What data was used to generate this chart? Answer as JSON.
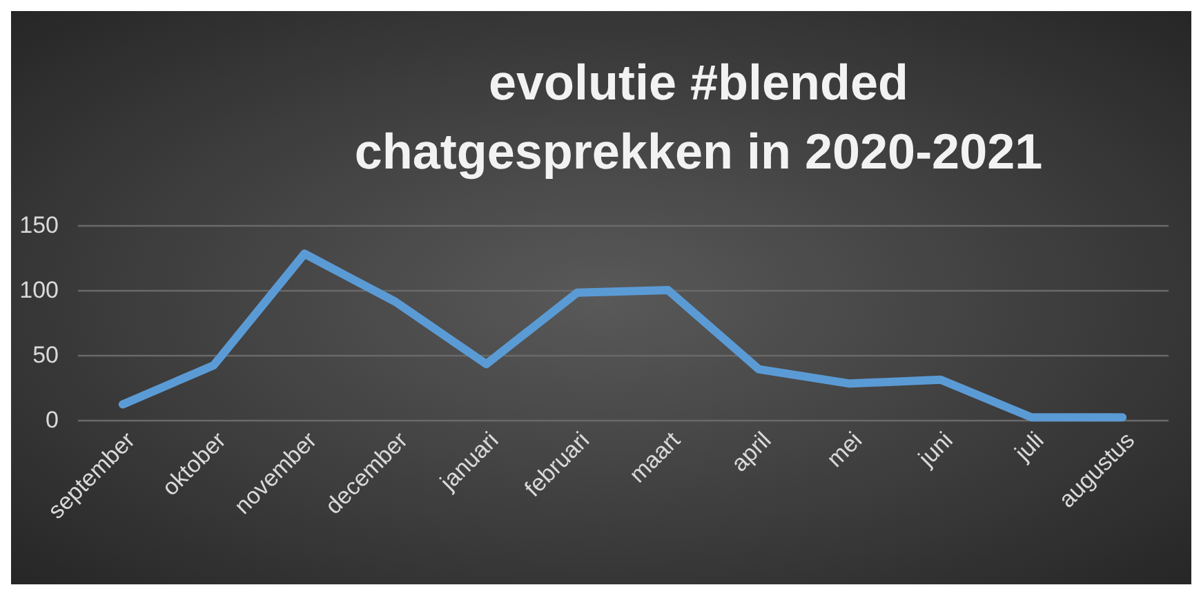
{
  "chart_data": {
    "type": "line",
    "title": "evolutie #blended chatgesprekken in 2020-2021",
    "categories": [
      "september",
      "oktober",
      "november",
      "december",
      "januari",
      "februari",
      "maart",
      "april",
      "mei",
      "juni",
      "juli",
      "augustus"
    ],
    "series": [
      {
        "color": "#5b9bd5",
        "values": [
          12,
          42,
          128,
          91,
          43,
          98,
          100,
          39,
          28,
          31,
          2,
          2
        ]
      }
    ],
    "ylim": [
      0,
      150
    ],
    "yticks": [
      0,
      50,
      100,
      150
    ],
    "grid": "y",
    "legend": false,
    "marker": "none",
    "line_style": "solid"
  }
}
